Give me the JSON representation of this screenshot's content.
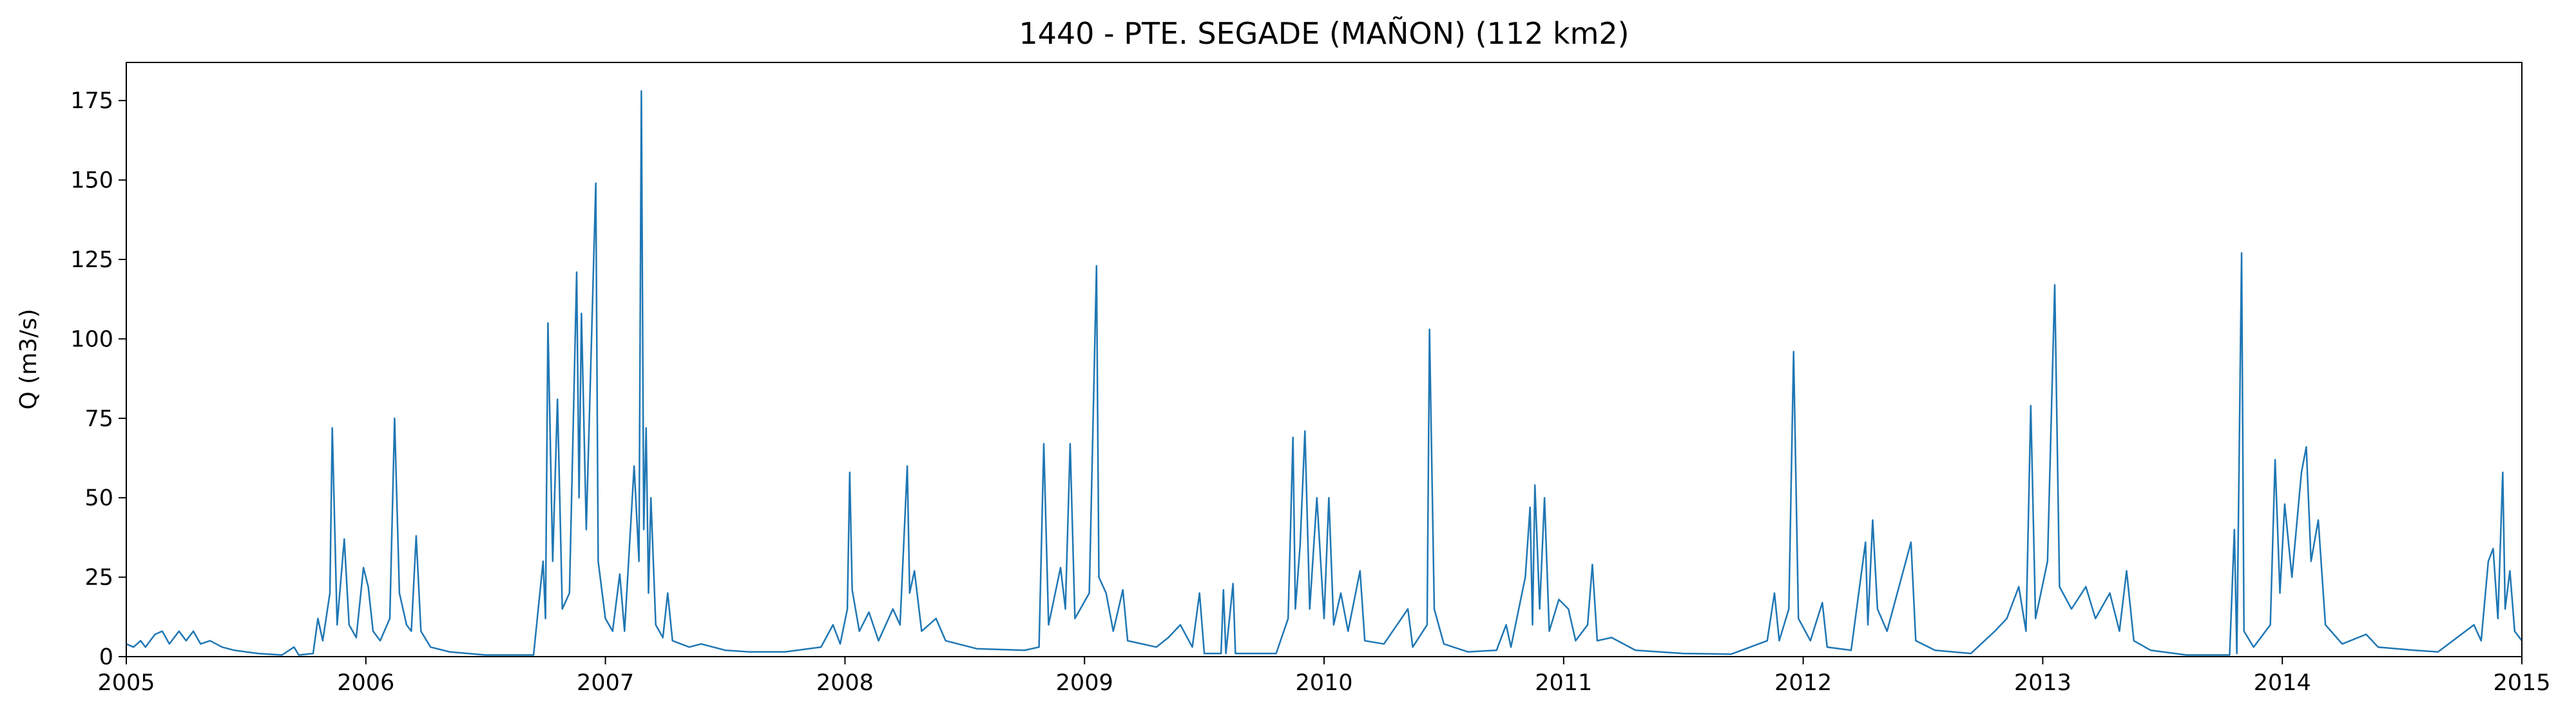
{
  "chart_data": {
    "type": "line",
    "title": "1440 - PTE. SEGADE (MAÑON) (112 km2)",
    "y_label": "Q (m3/s)",
    "color": "#1f77b4",
    "grid": false,
    "xlim": [
      2005,
      2015
    ],
    "xticks": [
      2005,
      2006,
      2007,
      2008,
      2009,
      2010,
      2011,
      2012,
      2013,
      2014,
      2015
    ],
    "ylim": [
      0,
      187
    ],
    "yticks": [
      0,
      25,
      50,
      75,
      100,
      125,
      150,
      175
    ],
    "x": [
      2005.0,
      2005.03,
      2005.06,
      2005.08,
      2005.12,
      2005.15,
      2005.18,
      2005.22,
      2005.25,
      2005.28,
      2005.31,
      2005.35,
      2005.4,
      2005.45,
      2005.55,
      2005.65,
      2005.7,
      2005.72,
      2005.78,
      2005.8,
      2005.82,
      2005.85,
      2005.86,
      2005.88,
      2005.91,
      2005.93,
      2005.96,
      2005.99,
      2006.01,
      2006.03,
      2006.06,
      2006.1,
      2006.12,
      2006.14,
      2006.17,
      2006.19,
      2006.21,
      2006.23,
      2006.27,
      2006.35,
      2006.5,
      2006.7,
      2006.74,
      2006.75,
      2006.76,
      2006.78,
      2006.8,
      2006.82,
      2006.85,
      2006.88,
      2006.89,
      2006.9,
      2006.92,
      2006.96,
      2006.97,
      2007.0,
      2007.03,
      2007.06,
      2007.08,
      2007.12,
      2007.14,
      2007.15,
      2007.16,
      2007.17,
      2007.18,
      2007.19,
      2007.21,
      2007.24,
      2007.26,
      2007.28,
      2007.35,
      2007.4,
      2007.5,
      2007.6,
      2007.75,
      2007.9,
      2007.95,
      2007.98,
      2008.01,
      2008.02,
      2008.03,
      2008.06,
      2008.1,
      2008.14,
      2008.2,
      2008.23,
      2008.26,
      2008.27,
      2008.29,
      2008.32,
      2008.38,
      2008.42,
      2008.55,
      2008.75,
      2008.81,
      2008.83,
      2008.85,
      2008.9,
      2008.92,
      2008.94,
      2008.96,
      2009.02,
      2009.05,
      2009.06,
      2009.09,
      2009.12,
      2009.16,
      2009.18,
      2009.3,
      2009.35,
      2009.4,
      2009.45,
      2009.48,
      2009.5,
      2009.57,
      2009.58,
      2009.59,
      2009.62,
      2009.63,
      2009.8,
      2009.85,
      2009.87,
      2009.88,
      2009.9,
      2009.92,
      2009.94,
      2009.97,
      2010.0,
      2010.02,
      2010.04,
      2010.07,
      2010.1,
      2010.15,
      2010.17,
      2010.25,
      2010.35,
      2010.37,
      2010.43,
      2010.44,
      2010.46,
      2010.5,
      2010.6,
      2010.72,
      2010.76,
      2010.78,
      2010.84,
      2010.86,
      2010.87,
      2010.88,
      2010.9,
      2010.92,
      2010.94,
      2010.98,
      2011.02,
      2011.05,
      2011.1,
      2011.12,
      2011.14,
      2011.2,
      2011.3,
      2011.5,
      2011.7,
      2011.85,
      2011.88,
      2011.9,
      2011.94,
      2011.96,
      2011.98,
      2012.03,
      2012.08,
      2012.1,
      2012.2,
      2012.26,
      2012.27,
      2012.29,
      2012.31,
      2012.35,
      2012.45,
      2012.47,
      2012.55,
      2012.7,
      2012.8,
      2012.85,
      2012.9,
      2012.93,
      2012.95,
      2012.97,
      2013.02,
      2013.05,
      2013.07,
      2013.12,
      2013.18,
      2013.22,
      2013.28,
      2013.32,
      2013.35,
      2013.38,
      2013.45,
      2013.6,
      2013.78,
      2013.8,
      2013.81,
      2013.83,
      2013.84,
      2013.88,
      2013.95,
      2013.97,
      2013.99,
      2014.01,
      2014.04,
      2014.08,
      2014.1,
      2014.12,
      2014.15,
      2014.18,
      2014.25,
      2014.35,
      2014.4,
      2014.55,
      2014.65,
      2014.8,
      2014.83,
      2014.86,
      2014.88,
      2014.9,
      2014.92,
      2014.93,
      2014.95,
      2014.97,
      2015.0
    ],
    "values": [
      4,
      3,
      5,
      3,
      7,
      8,
      4,
      8,
      5,
      8,
      4,
      5,
      3,
      2,
      1,
      0.5,
      3,
      0.5,
      1,
      12,
      5,
      20,
      72,
      10,
      37,
      10,
      6,
      28,
      22,
      8,
      5,
      12,
      75,
      20,
      10,
      8,
      38,
      8,
      3,
      1.5,
      0.5,
      0.5,
      30,
      12,
      105,
      30,
      81,
      15,
      20,
      121,
      50,
      108,
      40,
      149,
      30,
      12,
      8,
      26,
      8,
      60,
      30,
      178,
      40,
      72,
      20,
      50,
      10,
      6,
      20,
      5,
      3,
      4,
      2,
      1.5,
      1.5,
      3,
      10,
      4,
      15,
      58,
      21,
      8,
      14,
      5,
      15,
      10,
      60,
      20,
      27,
      8,
      12,
      5,
      2.5,
      2,
      3,
      67,
      10,
      28,
      15,
      67,
      12,
      20,
      123,
      25,
      20,
      8,
      21,
      5,
      3,
      6,
      10,
      3,
      20,
      1,
      1,
      21,
      1,
      23,
      1,
      1,
      12,
      69,
      15,
      35,
      71,
      15,
      50,
      12,
      50,
      10,
      20,
      8,
      27,
      5,
      4,
      15,
      3,
      10,
      103,
      15,
      4,
      1.5,
      2,
      10,
      3,
      25,
      47,
      10,
      54,
      15,
      50,
      8,
      18,
      15,
      5,
      10,
      29,
      5,
      6,
      2,
      1,
      0.8,
      5,
      20,
      5,
      15,
      96,
      12,
      5,
      17,
      3,
      2,
      36,
      10,
      43,
      15,
      8,
      36,
      5,
      2,
      1,
      8,
      12,
      22,
      8,
      79,
      12,
      30,
      117,
      22,
      15,
      22,
      12,
      20,
      8,
      27,
      5,
      2,
      0.5,
      0.5,
      40,
      1,
      127,
      8,
      3,
      10,
      62,
      20,
      48,
      25,
      58,
      66,
      30,
      43,
      10,
      4,
      7,
      3,
      2,
      1.5,
      10,
      5,
      30,
      34,
      12,
      58,
      15,
      27,
      8,
      5
    ]
  }
}
